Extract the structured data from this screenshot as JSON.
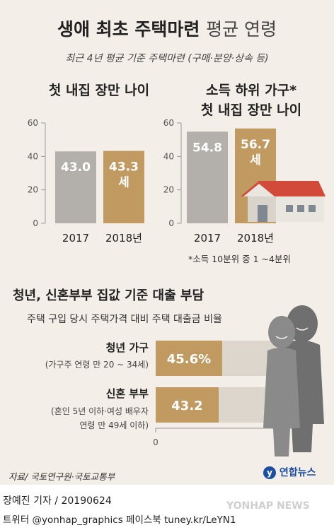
{
  "header": {
    "title_bold": "생애 최초 주택마련",
    "title_light": "평균 연령",
    "subtitle": "최근 4년 평균 기준 주택마련 (구매·분양·상속 등)"
  },
  "chart_data": [
    {
      "type": "bar",
      "title": "첫 내집 장만 나이",
      "categories": [
        "2017",
        "2018년"
      ],
      "values": [
        43.0,
        43.3
      ],
      "value_labels": [
        "43.0",
        "43.3"
      ],
      "unit": "세",
      "ylim": [
        0,
        60
      ],
      "yticks": [
        "0",
        "20",
        "40",
        "60"
      ],
      "colors": [
        "#b3b0ab",
        "#c19a62"
      ]
    },
    {
      "type": "bar",
      "title_line1": "소득 하위 가구*",
      "title_line2": "첫 내집 장만 나이",
      "categories": [
        "2017",
        "2018년"
      ],
      "values": [
        54.8,
        56.7
      ],
      "value_labels": [
        "54.8",
        "56.7"
      ],
      "unit": "세",
      "ylim": [
        0,
        60
      ],
      "yticks": [
        "0",
        "20",
        "40",
        "60"
      ],
      "colors": [
        "#b3b0ab",
        "#c19a62"
      ],
      "footnote": "*소득 10분위 중 1 ~4분위"
    },
    {
      "type": "bar",
      "orientation": "horizontal",
      "title": "청년, 신혼부부 집값 기준 대출 부담",
      "subtitle": "주택 구입 당시 주택가격 대비 주택 대출금 비율",
      "categories": [
        "청년 가구",
        "신혼 부부"
      ],
      "category_notes": [
        "(가구주 연령 만 20 ~ 34세)",
        "(혼인 5년 이하·여성 배우자",
        "연령 만 49세 이하)"
      ],
      "values": [
        45.6,
        43.2
      ],
      "value_labels": [
        "45.6%",
        "43.2"
      ],
      "xlim": [
        0,
        100
      ],
      "xticks": [
        "0",
        "100"
      ],
      "colors": {
        "value": "#c19a62",
        "track": "#dcd6cc"
      }
    }
  ],
  "source": "자료/ 국토연구원·국토교통부",
  "logo": "연합뉴스",
  "footer": {
    "byline": "장예진 기자 / 20190624",
    "social": "트위터 @yonhap_graphics  페이스북 tuney.kr/LeYN1",
    "watermark": "YONHAP NEWS"
  }
}
